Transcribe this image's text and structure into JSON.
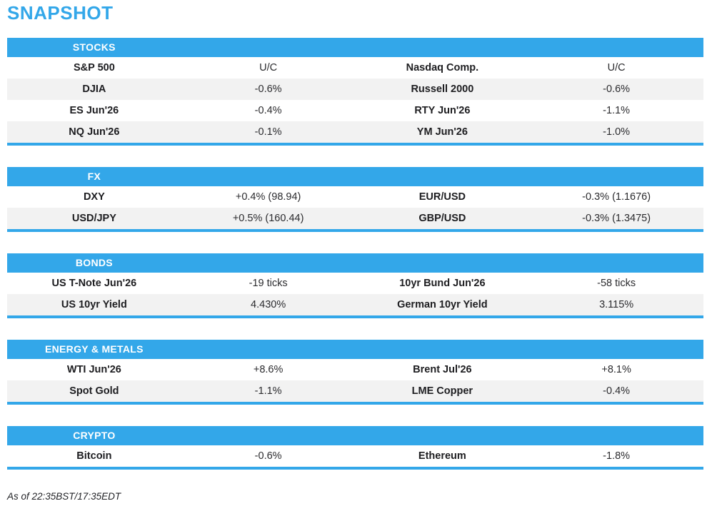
{
  "title": "SNAPSHOT",
  "footer": "As of 22:35BST/17:35EDT",
  "colors": {
    "accent": "#33a7e9",
    "row_alt": "#f2f2f2",
    "label_text": "#1d1d20"
  },
  "sections": [
    {
      "name": "STOCKS",
      "rows": [
        [
          "S&P 500",
          "U/C",
          "Nasdaq Comp.",
          "U/C"
        ],
        [
          "DJIA",
          "-0.6%",
          "Russell 2000",
          "-0.6%"
        ],
        [
          "ES Jun'26",
          "-0.4%",
          "RTY Jun'26",
          "-1.1%"
        ],
        [
          "NQ Jun'26",
          "-0.1%",
          "YM Jun'26",
          "-1.0%"
        ]
      ]
    },
    {
      "name": "FX",
      "rows": [
        [
          "DXY",
          "+0.4% (98.94)",
          "EUR/USD",
          "-0.3% (1.1676)"
        ],
        [
          "USD/JPY",
          "+0.5% (160.44)",
          "GBP/USD",
          "-0.3% (1.3475)"
        ]
      ]
    },
    {
      "name": "BONDS",
      "rows": [
        [
          "US T-Note Jun'26",
          "-19 ticks",
          "10yr Bund Jun'26",
          "-58 ticks"
        ],
        [
          "US 10yr Yield",
          "4.430%",
          "German 10yr Yield",
          "3.115%"
        ]
      ]
    },
    {
      "name": "ENERGY & METALS",
      "rows": [
        [
          "WTI Jun'26",
          "+8.6%",
          "Brent Jul'26",
          "+8.1%"
        ],
        [
          "Spot Gold",
          "-1.1%",
          "LME Copper",
          "-0.4%"
        ]
      ]
    },
    {
      "name": "CRYPTO",
      "rows": [
        [
          "Bitcoin",
          "-0.6%",
          "Ethereum",
          "-1.8%"
        ]
      ]
    }
  ]
}
